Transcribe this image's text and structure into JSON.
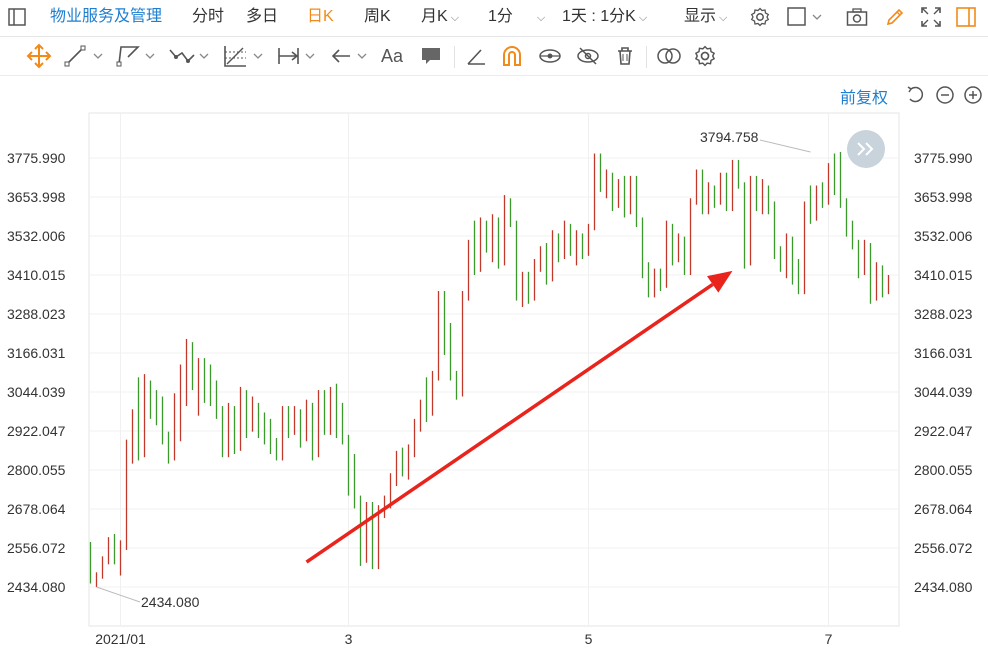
{
  "header": {
    "title": "物业服务及管理",
    "tabs": [
      {
        "label": "分时"
      },
      {
        "label": "多日"
      },
      {
        "label": "日K"
      },
      {
        "label": "周K"
      },
      {
        "label": "月K"
      },
      {
        "label": "1分"
      },
      {
        "label": "1天 : 1分K"
      },
      {
        "label": "显示"
      }
    ]
  },
  "drawing_tools": {
    "text_tool_label": "Aa"
  },
  "options": {
    "adjust_label": "前复权"
  },
  "colors": {
    "up": "#c0392b",
    "down": "#3c9a2d",
    "accent": "#f28a1a",
    "link": "#1e7fd0",
    "arrow": "#e8241c"
  },
  "chart_data": {
    "type": "ohlc",
    "ylim": [
      2380,
      3880
    ],
    "y_ticks": [
      "3775.990",
      "3653.998",
      "3532.006",
      "3410.015",
      "3288.023",
      "3166.031",
      "3044.039",
      "2922.047",
      "2800.055",
      "2678.064",
      "2556.072",
      "2434.080"
    ],
    "x_tick_labels": [
      {
        "label": "2021/01",
        "index": 5
      },
      {
        "label": "3",
        "index": 43
      },
      {
        "label": "5",
        "index": 83
      },
      {
        "label": "7",
        "index": 123
      }
    ],
    "annotations": {
      "max_label": "3794.758",
      "max_value": 3794.758,
      "max_index": 120,
      "min_label": "2434.080",
      "min_value": 2434.08,
      "min_index": 1
    },
    "trend_arrow": {
      "from": {
        "index": 36,
        "value": 2512
      },
      "to": {
        "index": 107,
        "value": 3423
      }
    },
    "bars": [
      [
        2560,
        2575,
        2445,
        2455
      ],
      [
        2455,
        2480,
        2434,
        2470
      ],
      [
        2470,
        2530,
        2460,
        2515
      ],
      [
        2515,
        2590,
        2505,
        2580
      ],
      [
        2580,
        2600,
        2505,
        2525
      ],
      [
        2525,
        2580,
        2470,
        2560
      ],
      [
        2560,
        2895,
        2550,
        2890
      ],
      [
        2880,
        2990,
        2820,
        2970
      ],
      [
        2970,
        3090,
        2830,
        2850
      ],
      [
        2850,
        3100,
        2840,
        3070
      ],
      [
        3070,
        3080,
        2960,
        2990
      ],
      [
        2990,
        3050,
        2940,
        2960
      ],
      [
        2960,
        3030,
        2880,
        2900
      ],
      [
        2900,
        2920,
        2820,
        2840
      ],
      [
        2840,
        3040,
        2830,
        3020
      ],
      [
        3020,
        3130,
        2890,
        3100
      ],
      [
        3100,
        3210,
        3000,
        3180
      ],
      [
        3180,
        3200,
        3050,
        3060
      ],
      [
        3060,
        3150,
        2970,
        3140
      ],
      [
        3140,
        3150,
        3010,
        3040
      ],
      [
        3040,
        3130,
        3000,
        3010
      ],
      [
        3010,
        3080,
        2960,
        2980
      ],
      [
        2980,
        3000,
        2840,
        2860
      ],
      [
        2860,
        3010,
        2840,
        2990
      ],
      [
        2990,
        3000,
        2850,
        2870
      ],
      [
        2870,
        3060,
        2860,
        3040
      ],
      [
        3040,
        3050,
        2900,
        2940
      ],
      [
        2940,
        3030,
        2920,
        3000
      ],
      [
        3000,
        3010,
        2900,
        2930
      ],
      [
        2930,
        2980,
        2880,
        2900
      ],
      [
        2900,
        2960,
        2850,
        2880
      ],
      [
        2880,
        2900,
        2830,
        2840
      ],
      [
        2840,
        3000,
        2830,
        2990
      ],
      [
        2990,
        3000,
        2900,
        2930
      ],
      [
        2930,
        3000,
        2910,
        2980
      ],
      [
        2980,
        2990,
        2870,
        2900
      ],
      [
        2900,
        3020,
        2890,
        3000
      ],
      [
        3000,
        3010,
        2830,
        2850
      ],
      [
        2850,
        3050,
        2840,
        3030
      ],
      [
        3030,
        3050,
        2910,
        2930
      ],
      [
        2930,
        3060,
        2910,
        3040
      ],
      [
        3040,
        3070,
        2900,
        2920
      ],
      [
        2920,
        3010,
        2880,
        2900
      ],
      [
        2900,
        2910,
        2720,
        2740
      ],
      [
        2740,
        2850,
        2680,
        2700
      ],
      [
        2700,
        2720,
        2500,
        2520
      ],
      [
        2520,
        2700,
        2510,
        2680
      ],
      [
        2680,
        2700,
        2490,
        2500
      ],
      [
        2500,
        2690,
        2490,
        2670
      ],
      [
        2670,
        2720,
        2650,
        2700
      ],
      [
        2700,
        2790,
        2680,
        2770
      ],
      [
        2770,
        2860,
        2750,
        2840
      ],
      [
        2840,
        2870,
        2780,
        2790
      ],
      [
        2790,
        2880,
        2770,
        2860
      ],
      [
        2860,
        2960,
        2840,
        2940
      ],
      [
        2940,
        3020,
        2920,
        3010
      ],
      [
        3010,
        3090,
        2950,
        2980
      ],
      [
        2980,
        3110,
        2970,
        3090
      ],
      [
        3090,
        3360,
        3080,
        3350
      ],
      [
        3350,
        3360,
        3160,
        3190
      ],
      [
        3190,
        3260,
        3080,
        3100
      ],
      [
        3100,
        3110,
        3020,
        3040
      ],
      [
        3040,
        3360,
        3030,
        3340
      ],
      [
        3340,
        3520,
        3330,
        3510
      ],
      [
        3510,
        3580,
        3410,
        3430
      ],
      [
        3430,
        3590,
        3420,
        3570
      ],
      [
        3570,
        3580,
        3480,
        3490
      ],
      [
        3490,
        3600,
        3450,
        3580
      ],
      [
        3580,
        3590,
        3430,
        3450
      ],
      [
        3450,
        3660,
        3440,
        3640
      ],
      [
        3640,
        3650,
        3560,
        3570
      ],
      [
        3570,
        3580,
        3330,
        3350
      ],
      [
        3350,
        3420,
        3310,
        3410
      ],
      [
        3410,
        3420,
        3320,
        3340
      ],
      [
        3340,
        3460,
        3330,
        3440
      ],
      [
        3440,
        3500,
        3420,
        3490
      ],
      [
        3490,
        3510,
        3380,
        3400
      ],
      [
        3400,
        3550,
        3390,
        3530
      ],
      [
        3530,
        3540,
        3450,
        3470
      ],
      [
        3470,
        3580,
        3460,
        3560
      ],
      [
        3560,
        3570,
        3470,
        3490
      ],
      [
        3490,
        3550,
        3440,
        3530
      ],
      [
        3530,
        3540,
        3460,
        3480
      ],
      [
        3480,
        3570,
        3470,
        3560
      ],
      [
        3560,
        3790,
        3550,
        3780
      ],
      [
        3780,
        3790,
        3670,
        3690
      ],
      [
        3690,
        3740,
        3650,
        3720
      ],
      [
        3720,
        3730,
        3610,
        3630
      ],
      [
        3630,
        3710,
        3620,
        3700
      ],
      [
        3700,
        3720,
        3590,
        3610
      ],
      [
        3610,
        3720,
        3600,
        3710
      ],
      [
        3710,
        3720,
        3560,
        3580
      ],
      [
        3580,
        3590,
        3400,
        3420
      ],
      [
        3420,
        3450,
        3340,
        3350
      ],
      [
        3350,
        3430,
        3340,
        3420
      ],
      [
        3420,
        3430,
        3360,
        3380
      ],
      [
        3380,
        3580,
        3370,
        3560
      ],
      [
        3560,
        3570,
        3440,
        3460
      ],
      [
        3460,
        3540,
        3450,
        3520
      ],
      [
        3520,
        3530,
        3410,
        3420
      ],
      [
        3420,
        3650,
        3410,
        3640
      ],
      [
        3640,
        3740,
        3630,
        3730
      ],
      [
        3730,
        3740,
        3600,
        3610
      ],
      [
        3610,
        3700,
        3600,
        3680
      ],
      [
        3680,
        3690,
        3620,
        3640
      ],
      [
        3640,
        3730,
        3630,
        3720
      ],
      [
        3720,
        3730,
        3610,
        3620
      ],
      [
        3620,
        3770,
        3610,
        3760
      ],
      [
        3760,
        3770,
        3680,
        3690
      ],
      [
        3690,
        3700,
        3430,
        3450
      ],
      [
        3450,
        3720,
        3440,
        3700
      ],
      [
        3700,
        3720,
        3610,
        3620
      ],
      [
        3620,
        3710,
        3600,
        3680
      ],
      [
        3680,
        3690,
        3600,
        3620
      ],
      [
        3620,
        3640,
        3460,
        3480
      ],
      [
        3480,
        3500,
        3420,
        3440
      ],
      [
        3440,
        3540,
        3400,
        3520
      ],
      [
        3520,
        3530,
        3380,
        3400
      ],
      [
        3400,
        3460,
        3350,
        3360
      ],
      [
        3360,
        3640,
        3350,
        3620
      ],
      [
        3620,
        3690,
        3570,
        3590
      ],
      [
        3590,
        3690,
        3580,
        3680
      ],
      [
        3680,
        3700,
        3620,
        3640
      ],
      [
        3640,
        3760,
        3630,
        3740
      ],
      [
        3740,
        3790,
        3660,
        3680
      ],
      [
        3680,
        3794.758,
        3620,
        3640
      ],
      [
        3640,
        3650,
        3530,
        3550
      ],
      [
        3550,
        3580,
        3490,
        3500
      ],
      [
        3500,
        3520,
        3400,
        3420
      ],
      [
        3420,
        3520,
        3410,
        3500
      ],
      [
        3500,
        3510,
        3320,
        3340
      ],
      [
        3340,
        3450,
        3330,
        3430
      ],
      [
        3430,
        3440,
        3340,
        3360
      ],
      [
        3360,
        3410,
        3350,
        3400
      ]
    ]
  }
}
